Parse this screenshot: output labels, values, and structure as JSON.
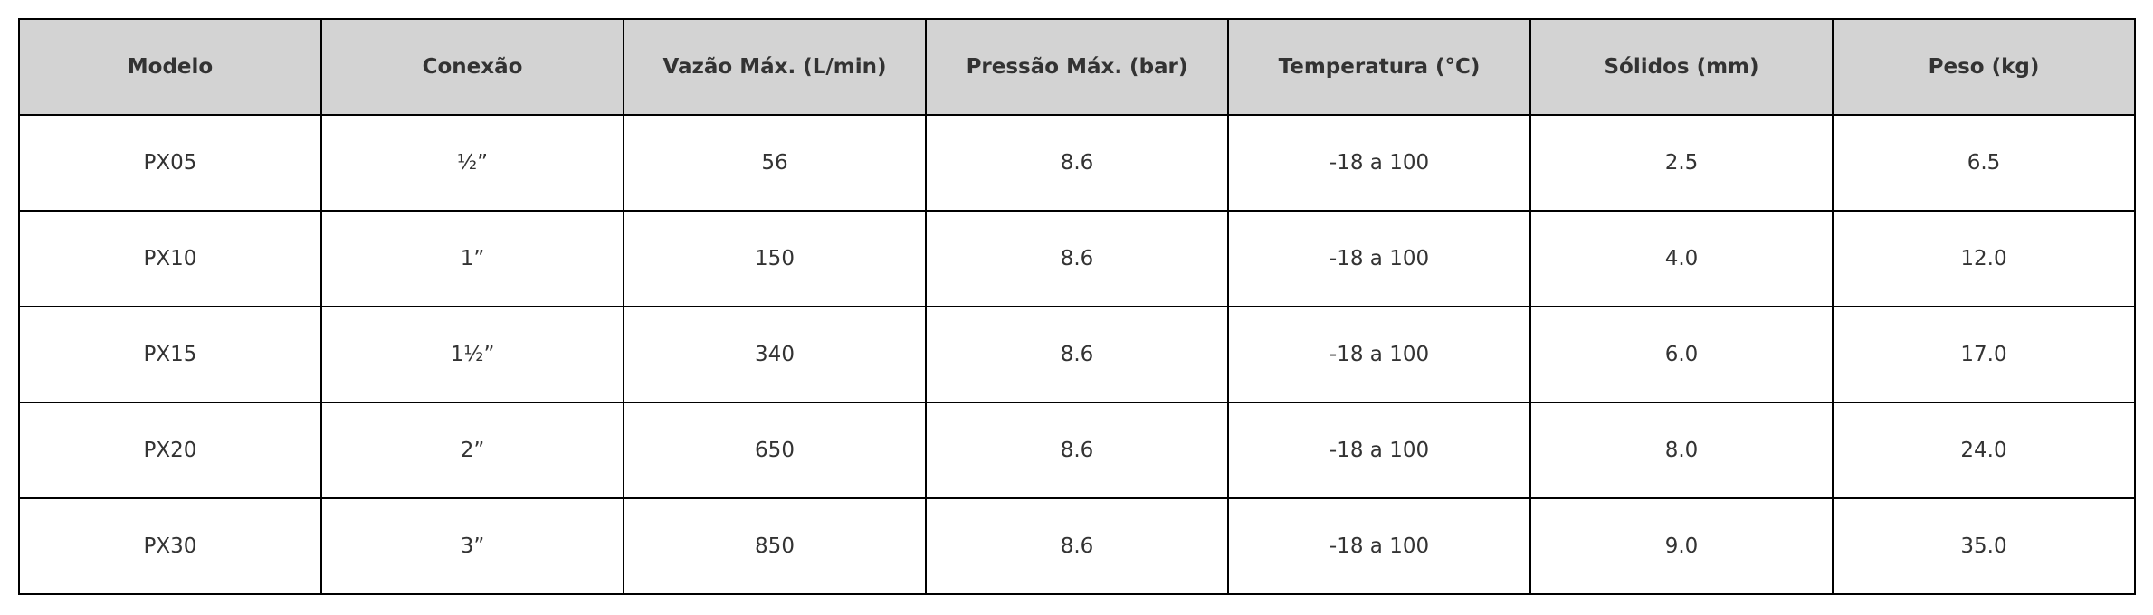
{
  "table": {
    "header": [
      "Modelo",
      "Conexão",
      "Vazão Máx. (L/min)",
      "Pressão Máx. (bar)",
      "Temperatura (°C)",
      "Sólidos (mm)",
      "Peso (kg)"
    ],
    "rows": [
      [
        "PX05",
        "½”",
        "56",
        "8.6",
        "-18 a 100",
        "2.5",
        "6.5"
      ],
      [
        "PX10",
        "1”",
        "150",
        "8.6",
        "-18 a 100",
        "4.0",
        "12.0"
      ],
      [
        "PX15",
        "1½”",
        "340",
        "8.6",
        "-18 a 100",
        "6.0",
        "17.0"
      ],
      [
        "PX20",
        "2”",
        "650",
        "8.6",
        "-18 a 100",
        "8.0",
        "24.0"
      ],
      [
        "PX30",
        "3”",
        "850",
        "8.6",
        "-18 a 100",
        "9.0",
        "35.0"
      ]
    ]
  }
}
